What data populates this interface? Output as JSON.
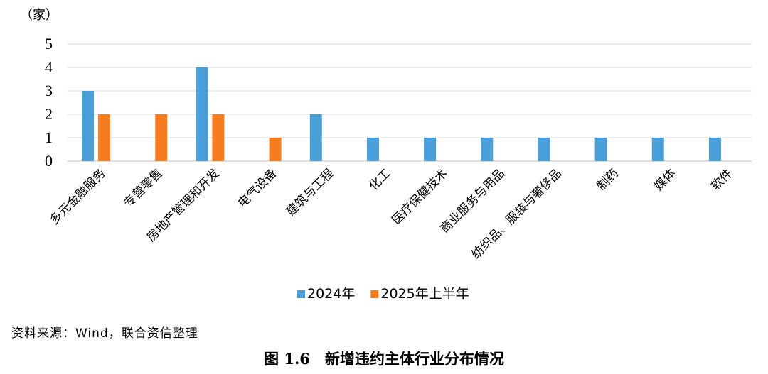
{
  "chart_data": {
    "type": "bar",
    "unit": "（家）",
    "categories": [
      "多元金融服务",
      "专营零售",
      "房地产管理和开发",
      "电气设备",
      "建筑与工程",
      "化工",
      "医疗保健技术",
      "商业服务与用品",
      "纺织品、服装与奢侈品",
      "制药",
      "媒体",
      "软件"
    ],
    "series": [
      {
        "name": "2024年",
        "color": "#4a9fd8",
        "values": [
          3,
          0,
          4,
          0,
          2,
          1,
          1,
          1,
          1,
          1,
          1,
          1
        ]
      },
      {
        "name": "2025年上半年",
        "color": "#f57c1f",
        "values": [
          2,
          2,
          2,
          1,
          0,
          0,
          0,
          0,
          0,
          0,
          0,
          0
        ]
      }
    ],
    "ylim": [
      0,
      5
    ],
    "yticks": [
      "0",
      "1",
      "2",
      "3",
      "4",
      "5"
    ],
    "grid": true,
    "legend_position": "bottom"
  },
  "source_text": "资料来源：Wind，联合资信整理",
  "caption": "图 1.6　新增违约主体行业分布情况"
}
